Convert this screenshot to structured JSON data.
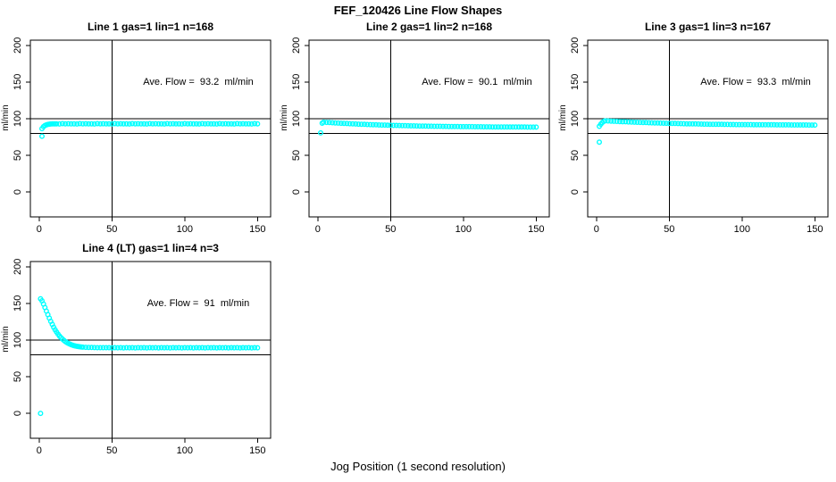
{
  "page_title": "FEF_120426  Line Flow Shapes",
  "x_axis_label": "Jog Position (1 second resolution)",
  "point_color": "#00ffff",
  "line_color": "#000000",
  "chart_data": [
    {
      "type": "scatter",
      "title": "Line 1 gas=1 lin=1 n=168",
      "annotation": "Ave. Flow =  93.2  ml/min",
      "ave_flow_ml_min": 93.2,
      "n": 168,
      "ylabel": "ml/min",
      "xticks": [
        0,
        50,
        100,
        150
      ],
      "yticks": [
        0,
        50,
        100,
        150,
        200
      ],
      "xlim": [
        -6,
        159
      ],
      "ylim": [
        -34,
        207
      ],
      "hlines": [
        80,
        100
      ],
      "vline": 50,
      "points": [
        [
          2,
          76
        ],
        [
          2,
          86.4
        ],
        [
          3,
          89
        ],
        [
          4,
          90.6
        ],
        [
          5,
          91.5
        ],
        [
          6,
          92.1
        ],
        [
          7,
          92.5
        ],
        [
          8,
          92.7
        ],
        [
          9,
          92.8
        ],
        [
          10,
          92.9
        ],
        [
          11,
          92.9
        ],
        [
          12,
          93
        ],
        [
          14,
          92.7
        ],
        [
          16,
          93.2
        ],
        [
          18,
          92.9
        ],
        [
          20,
          93.1
        ],
        [
          22,
          92.8
        ],
        [
          24,
          93
        ],
        [
          26,
          92.7
        ],
        [
          28,
          93.2
        ],
        [
          30,
          92.9
        ],
        [
          32,
          93.1
        ],
        [
          34,
          92.8
        ],
        [
          36,
          93
        ],
        [
          38,
          92.7
        ],
        [
          40,
          93.2
        ],
        [
          42,
          92.9
        ],
        [
          44,
          93.1
        ],
        [
          46,
          92.8
        ],
        [
          48,
          93
        ],
        [
          50,
          92.7
        ],
        [
          52,
          93.2
        ],
        [
          54,
          92.9
        ],
        [
          56,
          93.1
        ],
        [
          58,
          92.8
        ],
        [
          60,
          93
        ],
        [
          62,
          92.7
        ],
        [
          64,
          93.2
        ],
        [
          66,
          92.9
        ],
        [
          68,
          93.1
        ],
        [
          70,
          92.8
        ],
        [
          72,
          93
        ],
        [
          74,
          92.7
        ],
        [
          76,
          93.2
        ],
        [
          78,
          92.9
        ],
        [
          80,
          93.1
        ],
        [
          82,
          92.8
        ],
        [
          84,
          93
        ],
        [
          86,
          92.7
        ],
        [
          88,
          93.2
        ],
        [
          90,
          92.9
        ],
        [
          92,
          93.1
        ],
        [
          94,
          92.8
        ],
        [
          96,
          93
        ],
        [
          98,
          92.7
        ],
        [
          100,
          93.2
        ],
        [
          102,
          92.9
        ],
        [
          104,
          93.1
        ],
        [
          106,
          92.8
        ],
        [
          108,
          93
        ],
        [
          110,
          92.7
        ],
        [
          112,
          93.2
        ],
        [
          114,
          92.9
        ],
        [
          116,
          93.1
        ],
        [
          118,
          92.8
        ],
        [
          120,
          93
        ],
        [
          122,
          92.7
        ],
        [
          124,
          93.2
        ],
        [
          126,
          92.9
        ],
        [
          128,
          93.1
        ],
        [
          130,
          92.8
        ],
        [
          132,
          93
        ],
        [
          134,
          92.7
        ],
        [
          136,
          93.2
        ],
        [
          138,
          92.9
        ],
        [
          140,
          93.1
        ],
        [
          142,
          92.8
        ],
        [
          144,
          93
        ],
        [
          146,
          92.7
        ],
        [
          148,
          93.2
        ],
        [
          150,
          92.9
        ]
      ]
    },
    {
      "type": "scatter",
      "title": "Line 2 gas=1 lin=2 n=168",
      "annotation": "Ave. Flow =  90.1  ml/min",
      "ave_flow_ml_min": 90.1,
      "n": 168,
      "ylabel": "ml/min",
      "xticks": [
        0,
        50,
        100,
        150
      ],
      "yticks": [
        0,
        50,
        100,
        150,
        200
      ],
      "xlim": [
        -6,
        159
      ],
      "ylim": [
        -34,
        207
      ],
      "hlines": [
        80,
        100
      ],
      "vline": 50,
      "points": [
        [
          2,
          80.5
        ],
        [
          3,
          93.8
        ],
        [
          4,
          95.2
        ],
        [
          6,
          94.9
        ],
        [
          8,
          94.7
        ],
        [
          10,
          94.4
        ],
        [
          12,
          94.2
        ],
        [
          14,
          93.9
        ],
        [
          16,
          93.7
        ],
        [
          18,
          93.5
        ],
        [
          20,
          93.3
        ],
        [
          22,
          93.1
        ],
        [
          24,
          92.9
        ],
        [
          26,
          92.7
        ],
        [
          28,
          92.5
        ],
        [
          30,
          92.4
        ],
        [
          32,
          92.2
        ],
        [
          34,
          92
        ],
        [
          36,
          91.9
        ],
        [
          38,
          91.7
        ],
        [
          40,
          91.6
        ],
        [
          42,
          91.4
        ],
        [
          44,
          91.3
        ],
        [
          46,
          91.2
        ],
        [
          48,
          91
        ],
        [
          50,
          90.9
        ],
        [
          52,
          90.8
        ],
        [
          54,
          90.7
        ],
        [
          56,
          90.6
        ],
        [
          58,
          90.5
        ],
        [
          60,
          90.4
        ],
        [
          62,
          90.3
        ],
        [
          64,
          90.2
        ],
        [
          66,
          90.1
        ],
        [
          68,
          90
        ],
        [
          70,
          89.9
        ],
        [
          72,
          89.9
        ],
        [
          74,
          89.8
        ],
        [
          76,
          89.7
        ],
        [
          78,
          89.7
        ],
        [
          80,
          89.6
        ],
        [
          82,
          89.5
        ],
        [
          84,
          89.5
        ],
        [
          86,
          89.4
        ],
        [
          88,
          89.4
        ],
        [
          90,
          89.3
        ],
        [
          92,
          89.3
        ],
        [
          94,
          89.2
        ],
        [
          96,
          89.2
        ],
        [
          98,
          89.1
        ],
        [
          100,
          89.1
        ],
        [
          102,
          89
        ],
        [
          104,
          89
        ],
        [
          106,
          89
        ],
        [
          108,
          88.9
        ],
        [
          110,
          88.9
        ],
        [
          112,
          88.9
        ],
        [
          114,
          88.8
        ],
        [
          116,
          88.8
        ],
        [
          118,
          88.8
        ],
        [
          120,
          88.7
        ],
        [
          122,
          88.7
        ],
        [
          124,
          88.7
        ],
        [
          126,
          88.7
        ],
        [
          128,
          88.7
        ],
        [
          130,
          88.6
        ],
        [
          132,
          88.6
        ],
        [
          134,
          88.6
        ],
        [
          136,
          88.6
        ],
        [
          138,
          88.6
        ],
        [
          140,
          88.6
        ],
        [
          142,
          88.6
        ],
        [
          144,
          88.5
        ],
        [
          146,
          88.5
        ],
        [
          148,
          88.5
        ],
        [
          150,
          88.5
        ]
      ]
    },
    {
      "type": "scatter",
      "title": "Line 3 gas=1 lin=3 n=167",
      "annotation": "Ave. Flow =  93.3  ml/min",
      "ave_flow_ml_min": 93.3,
      "n": 167,
      "ylabel": "ml/min",
      "xticks": [
        0,
        50,
        100,
        150
      ],
      "yticks": [
        0,
        50,
        100,
        150,
        200
      ],
      "xlim": [
        -6,
        159
      ],
      "ylim": [
        -34,
        207
      ],
      "hlines": [
        80,
        100
      ],
      "vline": 50,
      "points": [
        [
          2,
          68
        ],
        [
          2,
          89.5
        ],
        [
          3,
          92.5
        ],
        [
          4,
          94.8
        ],
        [
          5,
          96.2
        ],
        [
          6,
          97
        ],
        [
          8,
          96.8
        ],
        [
          10,
          96.6
        ],
        [
          12,
          96.4
        ],
        [
          14,
          96.2
        ],
        [
          16,
          96
        ],
        [
          18,
          95.8
        ],
        [
          20,
          95.7
        ],
        [
          22,
          95.5
        ],
        [
          24,
          95.3
        ],
        [
          26,
          95.2
        ],
        [
          28,
          95
        ],
        [
          30,
          94.9
        ],
        [
          32,
          94.7
        ],
        [
          34,
          94.6
        ],
        [
          36,
          94.4
        ],
        [
          38,
          94.3
        ],
        [
          40,
          94.2
        ],
        [
          42,
          94
        ],
        [
          44,
          93.9
        ],
        [
          46,
          93.8
        ],
        [
          48,
          93.7
        ],
        [
          50,
          93.6
        ],
        [
          52,
          93.5
        ],
        [
          54,
          93.4
        ],
        [
          56,
          93.3
        ],
        [
          58,
          93.2
        ],
        [
          60,
          93.1
        ],
        [
          62,
          93
        ],
        [
          64,
          92.9
        ],
        [
          66,
          92.8
        ],
        [
          68,
          92.8
        ],
        [
          70,
          92.7
        ],
        [
          72,
          92.6
        ],
        [
          74,
          92.5
        ],
        [
          76,
          92.5
        ],
        [
          78,
          92.4
        ],
        [
          80,
          92.3
        ],
        [
          82,
          92.3
        ],
        [
          84,
          92.2
        ],
        [
          86,
          92.2
        ],
        [
          88,
          92.1
        ],
        [
          90,
          92.1
        ],
        [
          92,
          92
        ],
        [
          94,
          92
        ],
        [
          96,
          91.9
        ],
        [
          98,
          91.9
        ],
        [
          100,
          91.9
        ],
        [
          102,
          91.8
        ],
        [
          104,
          91.8
        ],
        [
          106,
          91.8
        ],
        [
          108,
          91.7
        ],
        [
          110,
          91.7
        ],
        [
          112,
          91.7
        ],
        [
          114,
          91.7
        ],
        [
          116,
          91.6
        ],
        [
          118,
          91.6
        ],
        [
          120,
          91.6
        ],
        [
          122,
          91.6
        ],
        [
          124,
          91.5
        ],
        [
          126,
          91.5
        ],
        [
          128,
          91.5
        ],
        [
          130,
          91.5
        ],
        [
          132,
          91.5
        ],
        [
          134,
          91.4
        ],
        [
          136,
          91.4
        ],
        [
          138,
          91.4
        ],
        [
          140,
          91.4
        ],
        [
          142,
          91.4
        ],
        [
          144,
          91.4
        ],
        [
          146,
          91.3
        ],
        [
          148,
          91.3
        ],
        [
          150,
          91.3
        ]
      ]
    },
    {
      "type": "scatter",
      "title": "Line 4 (LT) gas=1 lin=4 n=3",
      "annotation": "Ave. Flow =  91  ml/min",
      "ave_flow_ml_min": 91,
      "n": 3,
      "ylabel": "ml/min",
      "xticks": [
        0,
        50,
        100,
        150
      ],
      "yticks": [
        0,
        50,
        100,
        150,
        200
      ],
      "xlim": [
        -6,
        159
      ],
      "ylim": [
        -34,
        207
      ],
      "hlines": [
        80,
        100
      ],
      "vline": 50,
      "points": [
        [
          1,
          0
        ],
        [
          1,
          156.3
        ],
        [
          2,
          153.4
        ],
        [
          3,
          149.1
        ],
        [
          4,
          144.3
        ],
        [
          5,
          139.4
        ],
        [
          6,
          134.6
        ],
        [
          7,
          129.8
        ],
        [
          8,
          125.4
        ],
        [
          9,
          121.3
        ],
        [
          10,
          117.4
        ],
        [
          11,
          113.9
        ],
        [
          12,
          110.8
        ],
        [
          13,
          107.9
        ],
        [
          14,
          105.4
        ],
        [
          15,
          103.2
        ],
        [
          16,
          101.2
        ],
        [
          17,
          99.5
        ],
        [
          18,
          98
        ],
        [
          19,
          96.6
        ],
        [
          20,
          95.5
        ],
        [
          21,
          94.5
        ],
        [
          22,
          93.7
        ],
        [
          23,
          93
        ],
        [
          24,
          92.4
        ],
        [
          25,
          91.9
        ],
        [
          26,
          91.4
        ],
        [
          27,
          91.1
        ],
        [
          28,
          90.8
        ],
        [
          29,
          90.5
        ],
        [
          30,
          90.3
        ],
        [
          32,
          90
        ],
        [
          34,
          89.9
        ],
        [
          36,
          89.8
        ],
        [
          38,
          89.7
        ],
        [
          40,
          89.6
        ],
        [
          42,
          89.6
        ],
        [
          44,
          89.5
        ],
        [
          46,
          89.5
        ],
        [
          48,
          89.5
        ],
        [
          50,
          89.3
        ],
        [
          52,
          89.6
        ],
        [
          54,
          89.4
        ],
        [
          56,
          89.5
        ],
        [
          58,
          89.3
        ],
        [
          60,
          89.6
        ],
        [
          62,
          89.4
        ],
        [
          64,
          89.5
        ],
        [
          66,
          89.3
        ],
        [
          68,
          89.6
        ],
        [
          70,
          89.4
        ],
        [
          72,
          89.5
        ],
        [
          74,
          89.3
        ],
        [
          76,
          89.6
        ],
        [
          78,
          89.4
        ],
        [
          80,
          89.5
        ],
        [
          82,
          89.3
        ],
        [
          84,
          89.6
        ],
        [
          86,
          89.4
        ],
        [
          88,
          89.5
        ],
        [
          90,
          89.3
        ],
        [
          92,
          89.6
        ],
        [
          94,
          89.4
        ],
        [
          96,
          89.5
        ],
        [
          98,
          89.3
        ],
        [
          100,
          89.6
        ],
        [
          102,
          89.4
        ],
        [
          104,
          89.5
        ],
        [
          106,
          89.3
        ],
        [
          108,
          89.6
        ],
        [
          110,
          89.4
        ],
        [
          112,
          89.5
        ],
        [
          114,
          89.3
        ],
        [
          116,
          89.6
        ],
        [
          118,
          89.4
        ],
        [
          120,
          89.5
        ],
        [
          122,
          89.3
        ],
        [
          124,
          89.6
        ],
        [
          126,
          89.4
        ],
        [
          128,
          89.5
        ],
        [
          130,
          89.3
        ],
        [
          132,
          89.6
        ],
        [
          134,
          89.4
        ],
        [
          136,
          89.5
        ],
        [
          138,
          89.3
        ],
        [
          140,
          89.6
        ],
        [
          142,
          89.4
        ],
        [
          144,
          89.5
        ],
        [
          146,
          89.3
        ],
        [
          148,
          89.6
        ],
        [
          150,
          89.4
        ]
      ]
    }
  ]
}
